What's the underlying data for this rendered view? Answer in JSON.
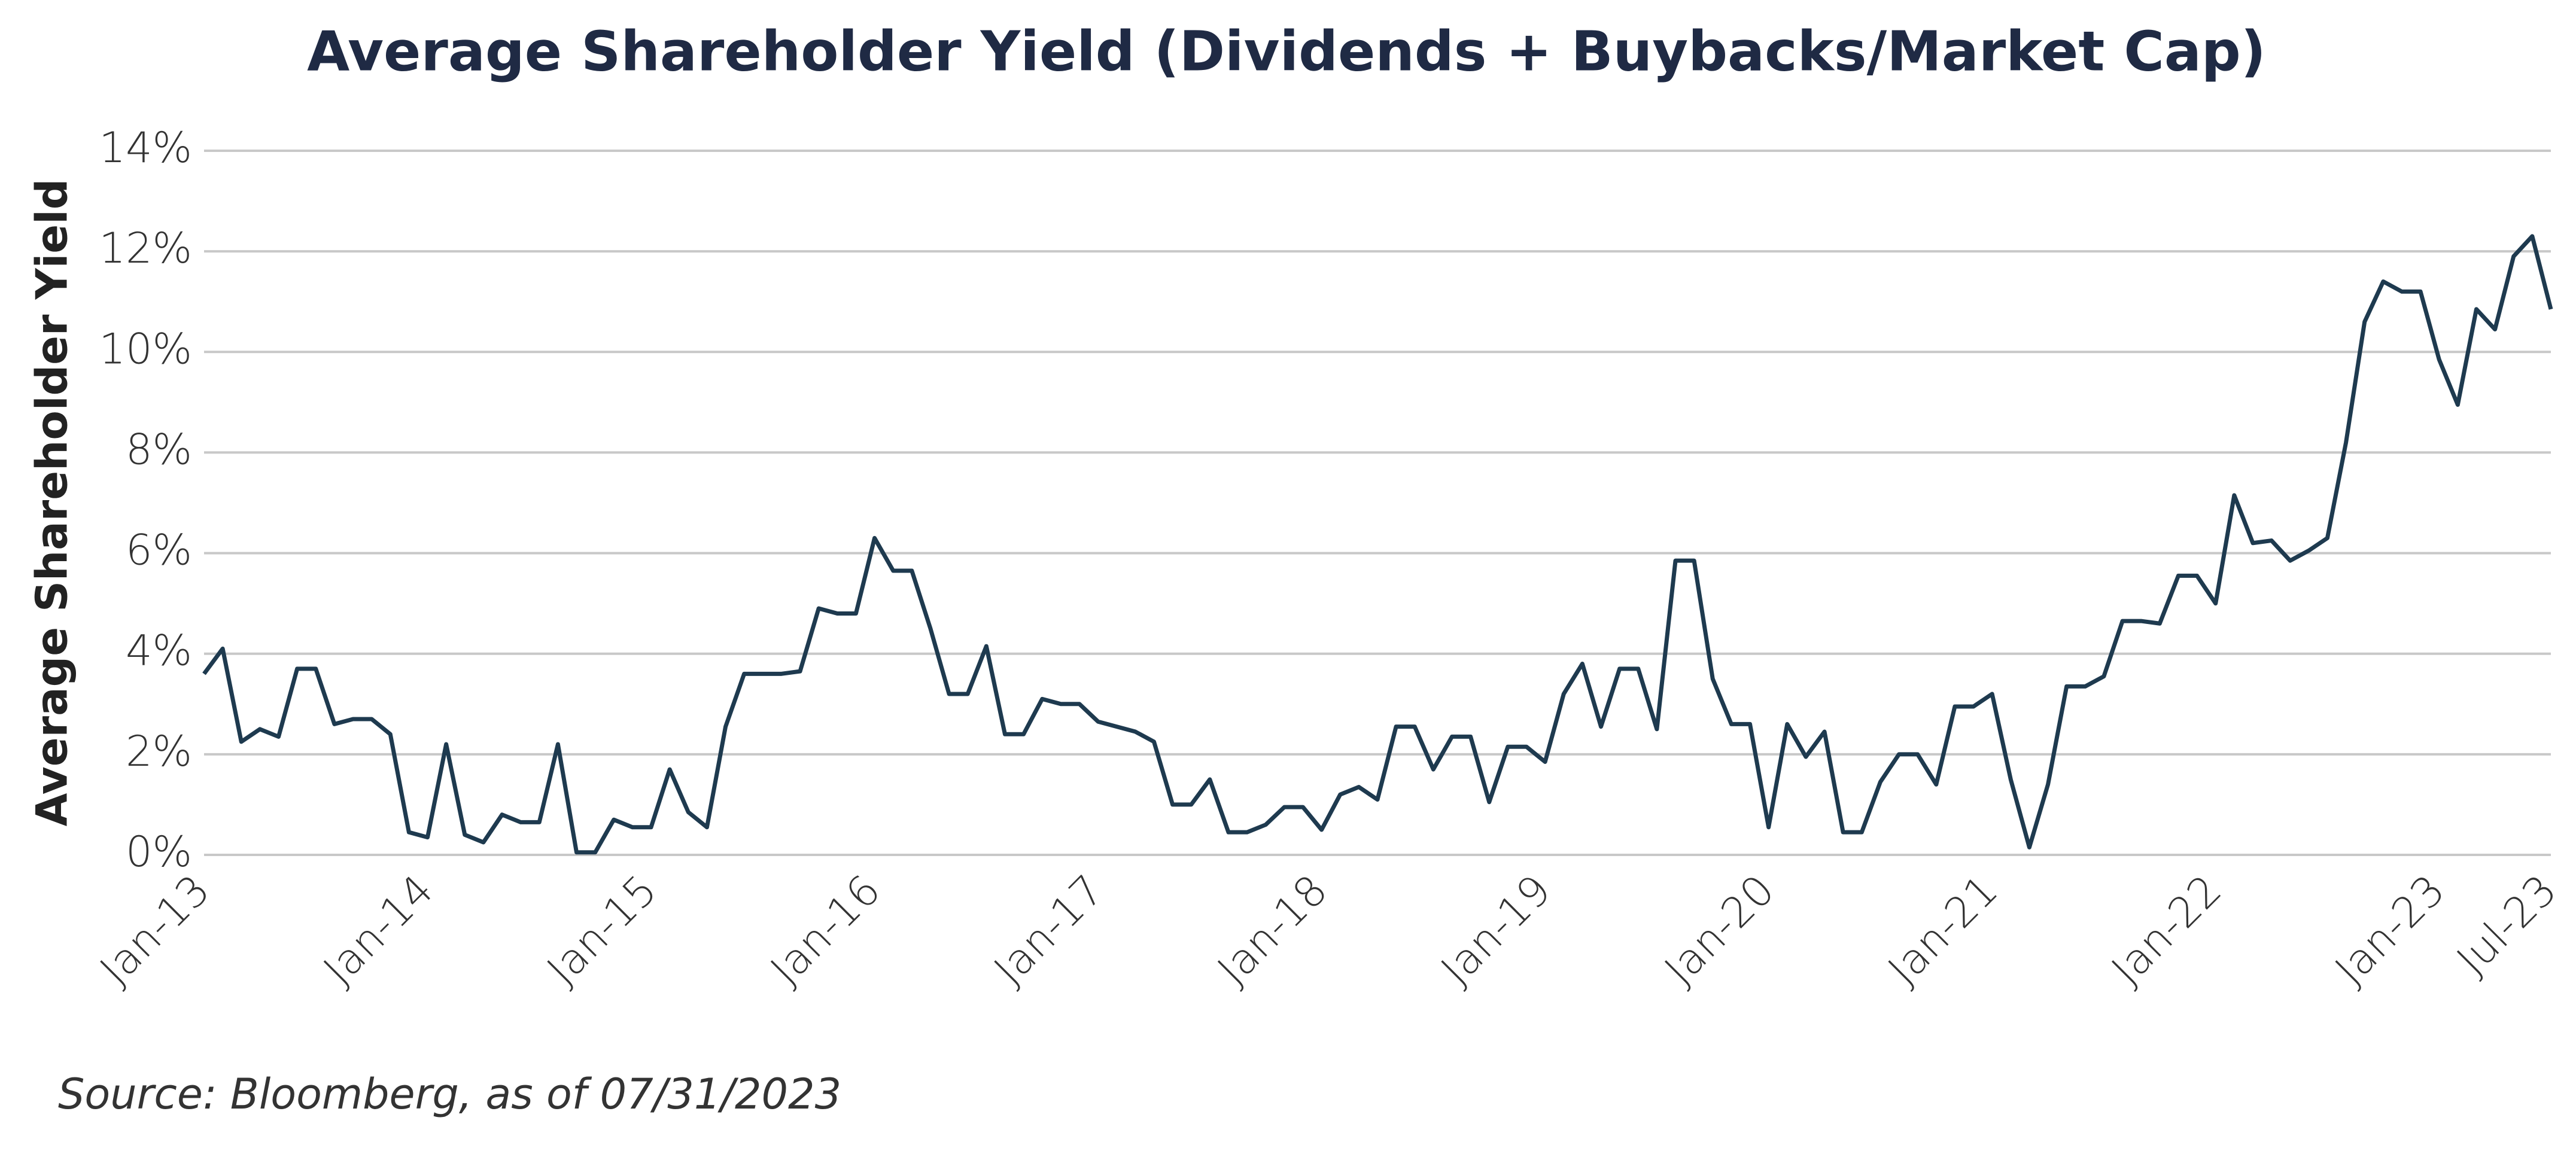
{
  "chart_data": {
    "type": "line",
    "title": "Average Shareholder Yield (Dividends + Buybacks/Market Cap)",
    "y_label": "Average Shareholder Yield",
    "source": "Source: Bloomberg, as of 07/31/2023",
    "color": "#1e3a4f",
    "categories": [
      "Jan-13",
      null,
      null,
      null,
      null,
      null,
      null,
      null,
      null,
      null,
      null,
      null,
      "Jan-14",
      null,
      null,
      null,
      null,
      null,
      null,
      null,
      null,
      null,
      null,
      null,
      "Jan-15",
      null,
      null,
      null,
      null,
      null,
      null,
      null,
      null,
      null,
      null,
      null,
      "Jan-16",
      null,
      null,
      null,
      null,
      null,
      null,
      null,
      null,
      null,
      null,
      null,
      "Jan-17",
      null,
      null,
      null,
      null,
      null,
      null,
      null,
      null,
      null,
      null,
      null,
      "Jan-18",
      null,
      null,
      null,
      null,
      null,
      null,
      null,
      null,
      null,
      null,
      null,
      "Jan-19",
      null,
      null,
      null,
      null,
      null,
      null,
      null,
      null,
      null,
      null,
      null,
      "Jan-20",
      null,
      null,
      null,
      null,
      null,
      null,
      null,
      null,
      null,
      null,
      null,
      "Jan-21",
      null,
      null,
      null,
      null,
      null,
      null,
      null,
      null,
      null,
      null,
      null,
      "Jan-22",
      null,
      null,
      null,
      null,
      null,
      null,
      null,
      null,
      null,
      null,
      null,
      "Jan-23",
      null,
      null,
      null,
      null,
      null,
      "Jul-23"
    ],
    "values": [
      3.6,
      4.1,
      2.25,
      2.5,
      2.35,
      3.7,
      3.7,
      2.6,
      2.7,
      2.7,
      2.4,
      0.45,
      0.35,
      2.2,
      0.4,
      0.25,
      0.8,
      0.65,
      0.65,
      2.2,
      0.05,
      0.05,
      0.7,
      0.55,
      0.55,
      1.7,
      0.85,
      0.55,
      2.55,
      3.6,
      3.6,
      3.6,
      3.65,
      4.9,
      4.8,
      4.8,
      6.3,
      5.65,
      5.65,
      4.5,
      3.2,
      3.2,
      4.15,
      2.4,
      2.4,
      3.1,
      3.0,
      3.0,
      2.65,
      2.55,
      2.45,
      2.25,
      1.0,
      1.0,
      1.5,
      0.45,
      0.45,
      0.6,
      0.95,
      0.95,
      0.5,
      1.2,
      1.35,
      1.1,
      2.55,
      2.55,
      1.7,
      2.35,
      2.35,
      1.05,
      2.15,
      2.15,
      1.85,
      3.2,
      3.8,
      2.55,
      3.7,
      3.7,
      2.5,
      5.85,
      5.85,
      3.5,
      2.6,
      2.6,
      0.55,
      2.6,
      1.95,
      2.45,
      0.45,
      0.45,
      1.45,
      2.0,
      2.0,
      1.4,
      2.95,
      2.95,
      3.2,
      1.5,
      0.15,
      1.4,
      3.35,
      3.35,
      3.55,
      4.65,
      4.65,
      4.6,
      5.55,
      5.55,
      5.0,
      7.15,
      6.2,
      6.25,
      5.85,
      6.05,
      6.3,
      8.2,
      10.6,
      11.4,
      11.2,
      11.2,
      9.85,
      8.95,
      10.85,
      10.45,
      11.9,
      12.3,
      10.85
    ],
    "ylim": [
      0,
      14
    ],
    "yticks": [
      {
        "value": 0,
        "label": "0%"
      },
      {
        "value": 2,
        "label": "2%"
      },
      {
        "value": 4,
        "label": "4%"
      },
      {
        "value": 6,
        "label": "6%"
      },
      {
        "value": 8,
        "label": "8%"
      },
      {
        "value": 10,
        "label": "10%"
      },
      {
        "value": 12,
        "label": "12%"
      },
      {
        "value": 14,
        "label": "14%"
      }
    ],
    "grid": true
  }
}
